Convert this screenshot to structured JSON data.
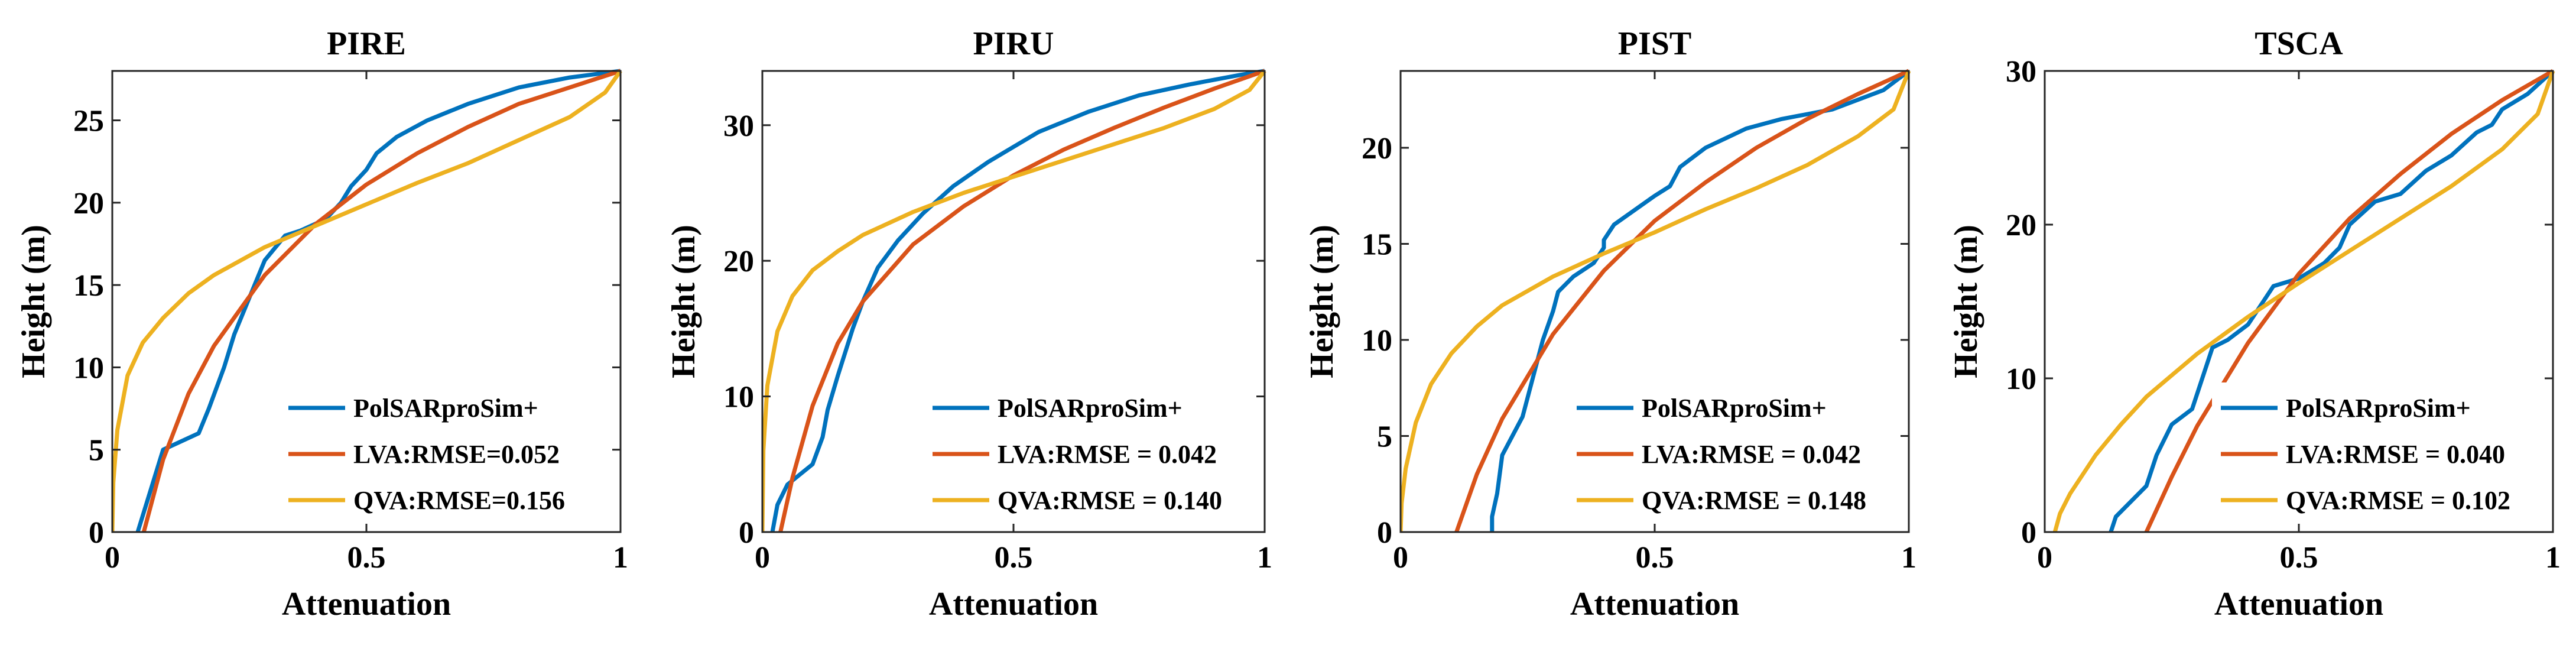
{
  "figure": {
    "x_label": "Attenuation",
    "y_label": "Height (m)"
  },
  "chart_data": [
    {
      "type": "line",
      "title": "PIRE",
      "xlabel": "Attenuation",
      "ylabel": "Height (m)",
      "xlim": [
        0,
        1
      ],
      "ylim": [
        0,
        28
      ],
      "xticks": [
        0,
        0.5,
        1
      ],
      "xtick_labels": [
        "0",
        "0.5",
        "1"
      ],
      "yticks": [
        0,
        5,
        10,
        15,
        20,
        25
      ],
      "ytick_labels": [
        "0",
        "5",
        "10",
        "15",
        "20",
        "25"
      ],
      "legend_position": "bottom-right",
      "series": [
        {
          "name": "PolSARproSim+",
          "label": "PolSARproSim+",
          "color": "#0072BD",
          "x": [
            0.05,
            0.07,
            0.1,
            0.17,
            0.19,
            0.22,
            0.24,
            0.28,
            0.3,
            0.34,
            0.37,
            0.42,
            0.45,
            0.47,
            0.5,
            0.52,
            0.56,
            0.62,
            0.7,
            0.8,
            0.9,
            1.0
          ],
          "y": [
            0,
            2,
            5,
            6,
            7.5,
            10,
            12,
            15,
            16.5,
            18,
            18.3,
            19,
            20,
            21,
            22,
            23,
            24,
            25,
            26,
            27,
            27.6,
            28
          ]
        },
        {
          "name": "LVA",
          "label": "LVA:RMSE=0.052",
          "color": "#D95319",
          "x": [
            0.062,
            0.1,
            0.15,
            0.2,
            0.3,
            0.4,
            0.5,
            0.6,
            0.7,
            0.8,
            0.9,
            1.0
          ],
          "y": [
            0,
            4.4,
            8.4,
            11.3,
            15.6,
            18.7,
            21.1,
            23.0,
            24.6,
            26.0,
            27.0,
            28.0
          ]
        },
        {
          "name": "QVA",
          "label": "QVA:RMSE=0.156",
          "color": "#EDB120",
          "x": [
            0.0,
            0.002,
            0.01,
            0.03,
            0.06,
            0.1,
            0.15,
            0.2,
            0.3,
            0.4,
            0.5,
            0.6,
            0.7,
            0.8,
            0.9,
            0.97,
            1.0
          ],
          "y": [
            0,
            3.0,
            6.2,
            9.5,
            11.5,
            13.0,
            14.5,
            15.6,
            17.3,
            18.6,
            19.9,
            21.2,
            22.4,
            23.8,
            25.2,
            26.7,
            28.0
          ]
        }
      ]
    },
    {
      "type": "line",
      "title": "PIRU",
      "xlabel": "Attenuation",
      "ylabel": "Height (m)",
      "xlim": [
        0,
        1
      ],
      "ylim": [
        0,
        34
      ],
      "xticks": [
        0,
        0.5,
        1
      ],
      "xtick_labels": [
        "0",
        "0.5",
        "1"
      ],
      "yticks": [
        0,
        10,
        20,
        30
      ],
      "ytick_labels": [
        "0",
        "10",
        "20",
        "30"
      ],
      "legend_position": "bottom-right",
      "series": [
        {
          "name": "PolSARproSim+",
          "label": "PolSARproSim+",
          "color": "#0072BD",
          "x": [
            0.02,
            0.03,
            0.05,
            0.1,
            0.12,
            0.13,
            0.15,
            0.18,
            0.2,
            0.23,
            0.27,
            0.32,
            0.38,
            0.45,
            0.55,
            0.65,
            0.75,
            0.85,
            0.95,
            1.0
          ],
          "y": [
            0,
            2,
            3.5,
            5,
            7,
            9,
            11.5,
            15,
            17,
            19.5,
            21.5,
            23.5,
            25.5,
            27.3,
            29.5,
            31.0,
            32.2,
            33.0,
            33.7,
            34.0
          ]
        },
        {
          "name": "LVA",
          "label": "LVA:RMSE = 0.042",
          "color": "#D95319",
          "x": [
            0.036,
            0.06,
            0.1,
            0.15,
            0.2,
            0.3,
            0.4,
            0.5,
            0.6,
            0.7,
            0.8,
            0.9,
            1.0
          ],
          "y": [
            0,
            4.0,
            9.3,
            13.9,
            17.0,
            21.2,
            24.0,
            26.3,
            28.2,
            29.8,
            31.3,
            32.7,
            34.0
          ]
        },
        {
          "name": "QVA",
          "label": "QVA:RMSE = 0.140",
          "color": "#EDB120",
          "x": [
            0.0,
            0.002,
            0.01,
            0.03,
            0.06,
            0.1,
            0.15,
            0.2,
            0.3,
            0.4,
            0.5,
            0.6,
            0.7,
            0.8,
            0.9,
            0.97,
            1.0
          ],
          "y": [
            0,
            6.0,
            10.8,
            14.8,
            17.4,
            19.3,
            20.7,
            21.9,
            23.6,
            25.0,
            26.2,
            27.4,
            28.6,
            29.8,
            31.2,
            32.6,
            34.0
          ]
        }
      ]
    },
    {
      "type": "line",
      "title": "PIST",
      "xlabel": "Attenuation",
      "ylabel": "Height (m)",
      "xlim": [
        0,
        1
      ],
      "ylim": [
        0,
        24
      ],
      "xticks": [
        0,
        0.5,
        1
      ],
      "xtick_labels": [
        "0",
        "0.5",
        "1"
      ],
      "yticks": [
        0,
        5,
        10,
        15,
        20
      ],
      "ytick_labels": [
        "0",
        "5",
        "10",
        "15",
        "20"
      ],
      "legend_position": "bottom-right",
      "series": [
        {
          "name": "PolSARproSim+",
          "label": "PolSARproSim+",
          "color": "#0072BD",
          "x": [
            0.18,
            0.18,
            0.19,
            0.2,
            0.24,
            0.25,
            0.28,
            0.3,
            0.31,
            0.34,
            0.38,
            0.4,
            0.4,
            0.42,
            0.5,
            0.53,
            0.55,
            0.6,
            0.68,
            0.75,
            0.85,
            0.95,
            1.0
          ],
          "y": [
            0,
            0.8,
            2,
            4,
            6,
            7,
            10,
            11.5,
            12.5,
            13.3,
            14,
            14.8,
            15.2,
            16,
            17.5,
            18,
            19,
            20,
            21,
            21.5,
            22,
            23,
            24
          ]
        },
        {
          "name": "LVA",
          "label": "LVA:RMSE = 0.042",
          "color": "#D95319",
          "x": [
            0.11,
            0.15,
            0.2,
            0.3,
            0.4,
            0.5,
            0.6,
            0.7,
            0.8,
            0.9,
            1.0
          ],
          "y": [
            0,
            3.0,
            5.9,
            10.3,
            13.6,
            16.2,
            18.2,
            20.0,
            21.5,
            22.8,
            24.0
          ]
        },
        {
          "name": "QVA",
          "label": "QVA:RMSE = 0.148",
          "color": "#EDB120",
          "x": [
            0.0,
            0.002,
            0.01,
            0.03,
            0.06,
            0.1,
            0.15,
            0.2,
            0.3,
            0.4,
            0.5,
            0.6,
            0.7,
            0.8,
            0.9,
            0.97,
            1.0
          ],
          "y": [
            0,
            1.5,
            3.3,
            5.7,
            7.7,
            9.3,
            10.7,
            11.8,
            13.3,
            14.5,
            15.6,
            16.8,
            17.9,
            19.1,
            20.6,
            22.0,
            24.0
          ]
        }
      ]
    },
    {
      "type": "line",
      "title": "TSCA",
      "xlabel": "Attenuation",
      "ylabel": "Height (m)",
      "xlim": [
        0,
        1
      ],
      "ylim": [
        0,
        30
      ],
      "xticks": [
        0,
        0.5,
        1
      ],
      "xtick_labels": [
        "0",
        "0.5",
        "1"
      ],
      "yticks": [
        0,
        10,
        20,
        30
      ],
      "ytick_labels": [
        "0",
        "10",
        "20",
        "30"
      ],
      "legend_position": "bottom-right",
      "series": [
        {
          "name": "PolSARproSim+",
          "label": "PolSARproSim+",
          "color": "#0072BD",
          "x": [
            0.13,
            0.14,
            0.2,
            0.22,
            0.25,
            0.29,
            0.31,
            0.33,
            0.36,
            0.4,
            0.43,
            0.45,
            0.5,
            0.55,
            0.58,
            0.6,
            0.65,
            0.7,
            0.75,
            0.8,
            0.85,
            0.88,
            0.9,
            0.95,
            1.0
          ],
          "y": [
            0,
            1,
            3,
            5,
            7,
            8,
            10,
            12,
            12.5,
            13.5,
            15,
            16,
            16.5,
            17.5,
            18.5,
            20,
            21.5,
            22,
            23.5,
            24.5,
            26,
            26.5,
            27.5,
            28.5,
            30
          ]
        },
        {
          "name": "LVA",
          "label": "LVA:RMSE = 0.040",
          "color": "#D95319",
          "x": [
            0.2,
            0.25,
            0.3,
            0.4,
            0.5,
            0.6,
            0.7,
            0.8,
            0.9,
            1.0
          ],
          "y": [
            0,
            3.6,
            6.9,
            12.3,
            16.8,
            20.4,
            23.3,
            25.9,
            28.1,
            30.0
          ]
        },
        {
          "name": "QVA",
          "label": "QVA:RMSE = 0.102",
          "color": "#EDB120",
          "x": [
            0.02,
            0.03,
            0.05,
            0.08,
            0.1,
            0.15,
            0.2,
            0.3,
            0.4,
            0.5,
            0.6,
            0.7,
            0.8,
            0.9,
            0.97,
            1.0
          ],
          "y": [
            0,
            1.2,
            2.5,
            4.0,
            5.0,
            7.0,
            8.8,
            11.6,
            14.0,
            16.2,
            18.3,
            20.4,
            22.5,
            24.9,
            27.2,
            30.0
          ]
        }
      ]
    }
  ]
}
